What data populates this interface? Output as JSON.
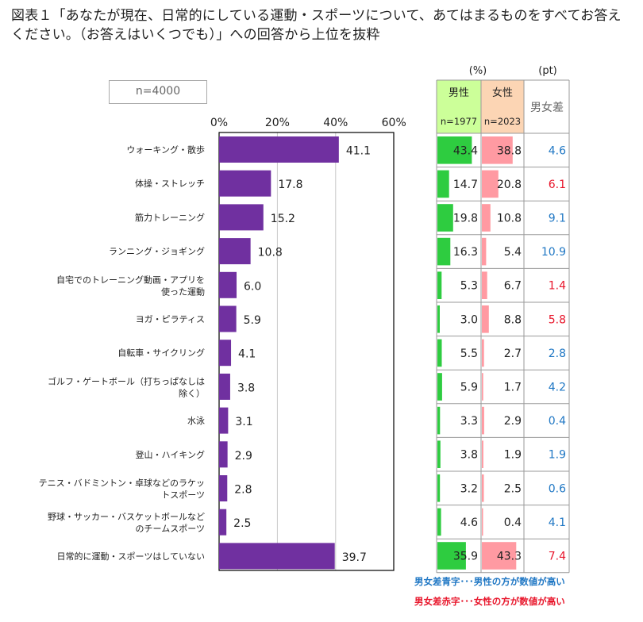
{
  "title_line1": "図表１「あなたが現在、日常的にしている運動・スポーツについて、あてはまるものをすべてお答え",
  "title_line2": "ください。（お答えはいくつでも）」への回答から上位を抜粋",
  "n_total": "n=4000",
  "unit_pct": "(%)",
  "unit_pt": "(pt)",
  "table_headers": {
    "male": "男性",
    "male_n": "n=1977",
    "female": "女性",
    "female_n": "n=2023",
    "diff": "男女差"
  },
  "legend": {
    "blue": "男女差青字･･･男性の方が数値が高い",
    "red": "男女差赤字･･･女性の方が数値が高い"
  },
  "colors": {
    "bar": "#7030a0",
    "male_bar": "#2ecc40",
    "female_bar": "#ff9aa2",
    "male_header_bg": "#ccff99",
    "female_header_bg": "#fcd5b4",
    "blue_text": "#1f77c4",
    "red_text": "#e8162b"
  },
  "chart_data": {
    "type": "bar",
    "orientation": "horizontal",
    "xlim": [
      0,
      60
    ],
    "x_ticks": [
      "0%",
      "20%",
      "40%",
      "60%"
    ],
    "grid": true,
    "categories": [
      [
        "ウォーキング・散歩"
      ],
      [
        "体操・ストレッチ"
      ],
      [
        "筋力トレーニング"
      ],
      [
        "ランニング・ジョギング"
      ],
      [
        "自宅でのトレーニング動画・アプリを",
        "使った運動"
      ],
      [
        "ヨガ・ピラティス"
      ],
      [
        "自転車・サイクリング"
      ],
      [
        "ゴルフ・ゲートボール（打ちっぱなしは",
        "除く）"
      ],
      [
        "水泳"
      ],
      [
        "登山・ハイキング"
      ],
      [
        "テニス・バドミントン・卓球などのラケッ",
        "トスポーツ"
      ],
      [
        "野球・サッカー・バスケットボールなど",
        "のチームスポーツ"
      ],
      [
        "日常的に運動・スポーツはしていない"
      ]
    ],
    "values": [
      "41.1",
      "17.8",
      "15.2",
      "10.8",
      "6.0",
      "5.9",
      "4.1",
      "3.8",
      "3.1",
      "2.9",
      "2.8",
      "2.5",
      "39.7"
    ],
    "male": [
      "43.4",
      "14.7",
      "19.8",
      "16.3",
      "5.3",
      "3.0",
      "5.5",
      "5.9",
      "3.3",
      "3.8",
      "3.2",
      "4.6",
      "35.9"
    ],
    "female": [
      "38.8",
      "20.8",
      "10.8",
      "5.4",
      "6.7",
      "8.8",
      "2.7",
      "1.7",
      "2.9",
      "1.9",
      "2.5",
      "0.4",
      "43.3"
    ],
    "diff": [
      "4.6",
      "6.1",
      "9.1",
      "10.9",
      "1.4",
      "5.8",
      "2.8",
      "4.2",
      "0.4",
      "1.9",
      "0.6",
      "4.1",
      "7.4"
    ],
    "diff_higher": [
      "male",
      "female",
      "male",
      "male",
      "female",
      "female",
      "male",
      "male",
      "male",
      "male",
      "male",
      "male",
      "female"
    ]
  }
}
